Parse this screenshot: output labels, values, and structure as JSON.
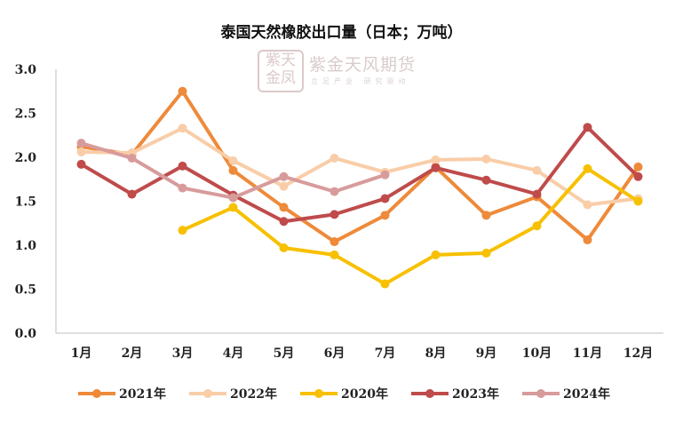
{
  "watermark": {
    "seal_text": "紫天金凤",
    "name": "紫金天风期货",
    "slogan": "立足产业 研究驱动"
  },
  "chart_data": {
    "type": "line",
    "title": "泰国天然橡胶出口量（日本；万吨）",
    "xlabel": "",
    "ylabel": "",
    "categories": [
      "1月",
      "2月",
      "3月",
      "4月",
      "5月",
      "6月",
      "7月",
      "8月",
      "9月",
      "10月",
      "11月",
      "12月"
    ],
    "ylim": [
      0,
      3.0
    ],
    "yticks": [
      "0.0",
      "0.5",
      "1.0",
      "1.5",
      "2.0",
      "2.5",
      "3.0"
    ],
    "grid": false,
    "legend": "bottom",
    "series": [
      {
        "name": "2021年",
        "color": "#EE8A3A",
        "values": [
          2.12,
          2.03,
          2.75,
          1.85,
          1.43,
          1.04,
          1.34,
          1.89,
          1.34,
          1.55,
          1.06,
          1.89
        ]
      },
      {
        "name": "2022年",
        "color": "#F9CDA8",
        "values": [
          2.06,
          2.05,
          2.33,
          1.96,
          1.67,
          1.99,
          1.83,
          1.97,
          1.98,
          1.85,
          1.46,
          1.53
        ]
      },
      {
        "name": "2020年",
        "color": "#F7C000",
        "values": [
          null,
          null,
          1.17,
          1.43,
          0.97,
          0.89,
          0.56,
          0.89,
          0.91,
          1.22,
          1.87,
          1.5
        ]
      },
      {
        "name": "2023年",
        "color": "#BF4B4B",
        "values": [
          1.92,
          1.58,
          1.9,
          1.57,
          1.27,
          1.35,
          1.53,
          1.88,
          1.74,
          1.58,
          2.34,
          1.78
        ]
      },
      {
        "name": "2024年",
        "color": "#D89B9B",
        "values": [
          2.16,
          1.99,
          1.65,
          1.54,
          1.78,
          1.61,
          1.8,
          null,
          null,
          null,
          null,
          null
        ]
      }
    ]
  }
}
